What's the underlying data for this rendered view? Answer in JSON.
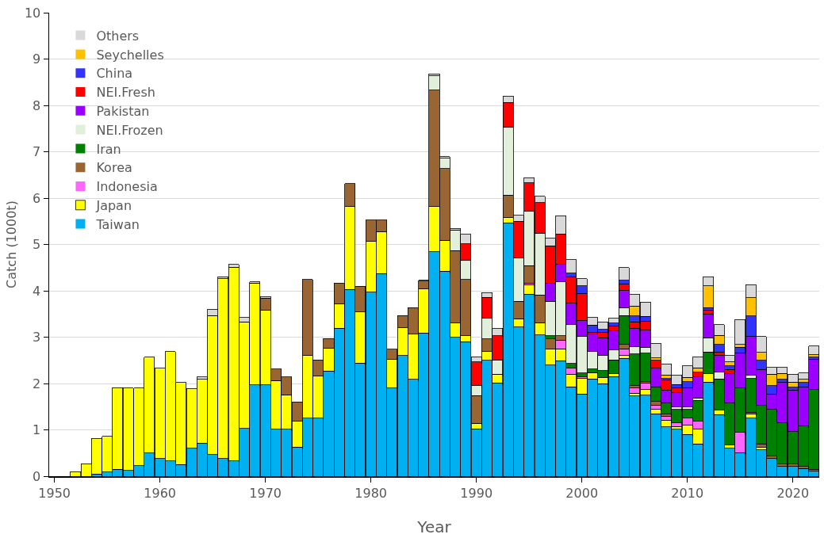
{
  "chart_data": {
    "type": "bar",
    "stacked": true,
    "xlabel": "Year",
    "ylabel": "Catch (1000t)",
    "xlim": [
      1949.5,
      2022.5
    ],
    "xticks": [
      1950,
      1960,
      1970,
      1980,
      1990,
      2000,
      2010,
      2020
    ],
    "ylim": [
      0,
      10
    ],
    "yticks": [
      0,
      1,
      2,
      3,
      4,
      5,
      6,
      7,
      8,
      9,
      10
    ],
    "grid": "y",
    "legend": "top left",
    "x": [
      1952,
      1953,
      1954,
      1955,
      1956,
      1957,
      1958,
      1959,
      1960,
      1961,
      1962,
      1963,
      1964,
      1965,
      1966,
      1967,
      1968,
      1969,
      1970,
      1971,
      1972,
      1973,
      1974,
      1975,
      1976,
      1977,
      1978,
      1979,
      1980,
      1981,
      1982,
      1983,
      1984,
      1985,
      1986,
      1987,
      1988,
      1989,
      1990,
      1991,
      1992,
      1993,
      1994,
      1995,
      1996,
      1997,
      1998,
      1999,
      2000,
      2001,
      2002,
      2003,
      2004,
      2005,
      2006,
      2007,
      2008,
      2009,
      2010,
      2011,
      2012,
      2013,
      2014,
      2015,
      2016,
      2017,
      2018,
      2019,
      2020,
      2021,
      2022
    ],
    "series": [
      {
        "name": "Taiwan",
        "color": "#00b0f0",
        "values": [
          0,
          0,
          0.05,
          0.09,
          0.15,
          0.12,
          0.23,
          0.5,
          0.38,
          0.33,
          0.25,
          0.6,
          0.71,
          0.47,
          0.38,
          0.33,
          1.03,
          1.97,
          1.97,
          1.01,
          1.01,
          0.63,
          1.25,
          1.25,
          2.27,
          3.19,
          4.03,
          2.44,
          3.97,
          4.37,
          1.9,
          2.6,
          2.09,
          3.09,
          4.84,
          4.42,
          3.0,
          2.9,
          1.02,
          2.5,
          2.01,
          5.47,
          3.22,
          3.93,
          3.05,
          2.4,
          2.49,
          1.93,
          1.77,
          2.1,
          2.0,
          2.15,
          2.54,
          1.73,
          1.75,
          1.35,
          1.06,
          1.01,
          0.9,
          0.7,
          2.03,
          1.33,
          0.6,
          0.5,
          1.25,
          0.57,
          0.38,
          0.21,
          0.21,
          0.17,
          0.11
        ]
      },
      {
        "name": "Japan",
        "color": "#ffff00",
        "values": [
          0.1,
          0.27,
          0.77,
          0.77,
          1.76,
          1.78,
          1.67,
          2.07,
          1.95,
          2.36,
          1.77,
          1.29,
          1.38,
          3.0,
          3.88,
          4.18,
          2.3,
          2.2,
          1.61,
          1.05,
          0.75,
          0.55,
          1.35,
          0.91,
          0.49,
          0.53,
          1.79,
          1.1,
          1.09,
          0.91,
          0.62,
          0.6,
          0.97,
          0.95,
          0.98,
          0.67,
          0.3,
          0.13,
          0.12,
          0.19,
          0.19,
          0.11,
          0.18,
          0.2,
          0.26,
          0.34,
          0.26,
          0.27,
          0.34,
          0.13,
          0.13,
          0.06,
          0.06,
          0.06,
          0.12,
          0.09,
          0.15,
          0.06,
          0.2,
          0.31,
          0.18,
          0.09,
          0.07,
          0,
          0.09,
          0.05,
          0,
          0,
          0,
          0,
          0
        ]
      },
      {
        "name": "Indonesia",
        "color": "#ff66ff",
        "values": [
          0,
          0,
          0,
          0,
          0,
          0,
          0,
          0,
          0,
          0,
          0,
          0,
          0,
          0,
          0,
          0,
          0,
          0,
          0,
          0,
          0,
          0,
          0,
          0,
          0,
          0,
          0,
          0,
          0,
          0,
          0,
          0,
          0,
          0,
          0,
          0,
          0,
          0,
          0,
          0,
          0,
          0,
          0,
          0.04,
          0,
          0,
          0.18,
          0.13,
          0.04,
          0,
          0,
          0,
          0.15,
          0.11,
          0.14,
          0.09,
          0.08,
          0.08,
          0.15,
          0.17,
          0,
          0,
          0,
          0.45,
          0,
          0,
          0,
          0,
          0,
          0,
          0
        ]
      },
      {
        "name": "Korea",
        "color": "#996633",
        "values": [
          0,
          0,
          0,
          0,
          0,
          0,
          0,
          0,
          0,
          0,
          0,
          0,
          0,
          0,
          0,
          0,
          0,
          0,
          0.26,
          0.25,
          0.38,
          0.42,
          1.64,
          0.35,
          0.21,
          0.45,
          0.49,
          0.56,
          0.47,
          0.25,
          0.22,
          0.27,
          0.58,
          0.17,
          2.51,
          1.55,
          1.57,
          1.21,
          0.6,
          0.27,
          0,
          0.48,
          0.37,
          0.37,
          0.6,
          0.23,
          0.1,
          0,
          0,
          0,
          0,
          0,
          0.09,
          0.05,
          0.04,
          0.08,
          0.05,
          0,
          0,
          0,
          0,
          0,
          0,
          0,
          0.04,
          0.08,
          0.06,
          0.05,
          0.05,
          0.04,
          0.04
        ]
      },
      {
        "name": "Iran",
        "color": "#008000",
        "values": [
          0,
          0,
          0,
          0,
          0,
          0,
          0,
          0,
          0,
          0,
          0,
          0,
          0,
          0,
          0,
          0,
          0,
          0,
          0,
          0,
          0,
          0,
          0,
          0,
          0,
          0,
          0,
          0,
          0,
          0,
          0,
          0,
          0,
          0,
          0,
          0,
          0,
          0,
          0,
          0,
          0,
          0,
          0,
          0,
          0,
          0.06,
          0,
          0.1,
          0.08,
          0.08,
          0.15,
          0.3,
          0.63,
          0.69,
          0.6,
          0.32,
          0.24,
          0.29,
          0.19,
          0.46,
          0.47,
          0.68,
          0.91,
          0.96,
          0.73,
          0.83,
          1.0,
          0.9,
          0.7,
          0.88,
          1.72
        ]
      },
      {
        "name": "NEI.Frozen",
        "color": "#e2efda",
        "values": [
          0,
          0,
          0,
          0,
          0,
          0,
          0,
          0,
          0,
          0,
          0,
          0,
          0,
          0,
          0,
          0,
          0,
          0,
          0,
          0,
          0,
          0,
          0,
          0,
          0,
          0,
          0,
          0,
          0,
          0,
          0,
          0,
          0,
          0,
          0.31,
          0.22,
          0.44,
          0.41,
          0.22,
          0.45,
          0.31,
          1.47,
          0.94,
          1.17,
          1.33,
          0.74,
          1.16,
          0.84,
          0.78,
          0.38,
          0.32,
          0.22,
          0.16,
          0.16,
          0.13,
          0,
          0,
          0.06,
          0.06,
          0.05,
          0.31,
          0.14,
          0,
          0,
          0.07,
          0,
          0,
          0,
          0,
          0,
          0
        ]
      },
      {
        "name": "Pakistan",
        "color": "#9900ff",
        "values": [
          0,
          0,
          0,
          0,
          0,
          0,
          0,
          0,
          0,
          0,
          0,
          0,
          0,
          0,
          0,
          0,
          0,
          0,
          0,
          0,
          0,
          0,
          0,
          0,
          0,
          0,
          0,
          0,
          0,
          0,
          0,
          0,
          0,
          0,
          0,
          0,
          0,
          0,
          0,
          0,
          0,
          0,
          0,
          0,
          0,
          0.4,
          0.39,
          0.46,
          0.35,
          0.37,
          0.39,
          0.4,
          0.38,
          0.39,
          0.37,
          0.4,
          0.28,
          0.31,
          0.41,
          0.46,
          0.51,
          0.37,
          0.63,
          0.75,
          0.83,
          0.77,
          0.33,
          0.86,
          0.9,
          0.83,
          0.66
        ]
      },
      {
        "name": "NEI.Fresh",
        "color": "#ff0000",
        "values": [
          0,
          0,
          0,
          0,
          0,
          0,
          0,
          0,
          0,
          0,
          0,
          0,
          0,
          0,
          0,
          0,
          0,
          0,
          0,
          0,
          0,
          0,
          0,
          0,
          0,
          0,
          0,
          0,
          0,
          0,
          0,
          0,
          0,
          0,
          0,
          0,
          0,
          0.36,
          0.51,
          0.45,
          0.52,
          0.53,
          0.79,
          0.62,
          0.66,
          0.8,
          0.65,
          0.57,
          0.58,
          0.05,
          0.11,
          0.11,
          0.13,
          0.14,
          0.19,
          0.17,
          0.21,
          0.09,
          0,
          0.09,
          0.08,
          0.07,
          0.09,
          0,
          0,
          0,
          0,
          0,
          0,
          0,
          0
        ]
      },
      {
        "name": "China",
        "color": "#3333ff",
        "values": [
          0,
          0,
          0,
          0,
          0,
          0,
          0,
          0,
          0,
          0,
          0,
          0,
          0,
          0,
          0,
          0,
          0,
          0,
          0,
          0,
          0,
          0,
          0,
          0,
          0,
          0,
          0,
          0,
          0,
          0,
          0,
          0,
          0,
          0,
          0,
          0,
          0,
          0,
          0,
          0,
          0,
          0,
          0,
          0,
          0,
          0,
          0,
          0.08,
          0.17,
          0.15,
          0.07,
          0.06,
          0.09,
          0.13,
          0.11,
          0,
          0.04,
          0.08,
          0.13,
          0,
          0.06,
          0.16,
          0.08,
          0.12,
          0.45,
          0.2,
          0.18,
          0.07,
          0.06,
          0.1,
          0.04
        ]
      },
      {
        "name": "Seychelles",
        "color": "#ffc000",
        "values": [
          0,
          0,
          0,
          0,
          0,
          0,
          0,
          0,
          0,
          0,
          0,
          0,
          0,
          0,
          0,
          0,
          0,
          0,
          0,
          0,
          0,
          0,
          0,
          0,
          0,
          0,
          0,
          0,
          0,
          0,
          0,
          0,
          0,
          0,
          0,
          0,
          0,
          0,
          0,
          0,
          0,
          0,
          0,
          0,
          0,
          0,
          0,
          0,
          0,
          0,
          0,
          0,
          0,
          0.21,
          0,
          0.05,
          0.07,
          0,
          0.09,
          0.1,
          0.47,
          0.2,
          0.09,
          0.06,
          0.39,
          0.17,
          0.25,
          0.13,
          0.11,
          0.07,
          0.05
        ]
      },
      {
        "name": "Others",
        "color": "#d9d9d9",
        "values": [
          0,
          0,
          0,
          0,
          0,
          0,
          0,
          0,
          0,
          0,
          0,
          0,
          0.05,
          0.13,
          0.04,
          0.06,
          0.09,
          0.02,
          0.04,
          0,
          0,
          0,
          0,
          0,
          0,
          0,
          0,
          0,
          0,
          0,
          0,
          0,
          0,
          0.02,
          0.04,
          0.03,
          0.04,
          0.21,
          0.11,
          0.1,
          0.16,
          0.14,
          0.13,
          0.11,
          0.14,
          0.16,
          0.39,
          0.29,
          0.15,
          0.16,
          0.16,
          0.11,
          0.27,
          0.26,
          0.31,
          0.32,
          0.24,
          0.2,
          0.25,
          0.24,
          0.19,
          0.23,
          0.13,
          0.54,
          0.28,
          0.34,
          0.15,
          0.13,
          0.17,
          0.14,
          0.19
        ]
      }
    ]
  }
}
